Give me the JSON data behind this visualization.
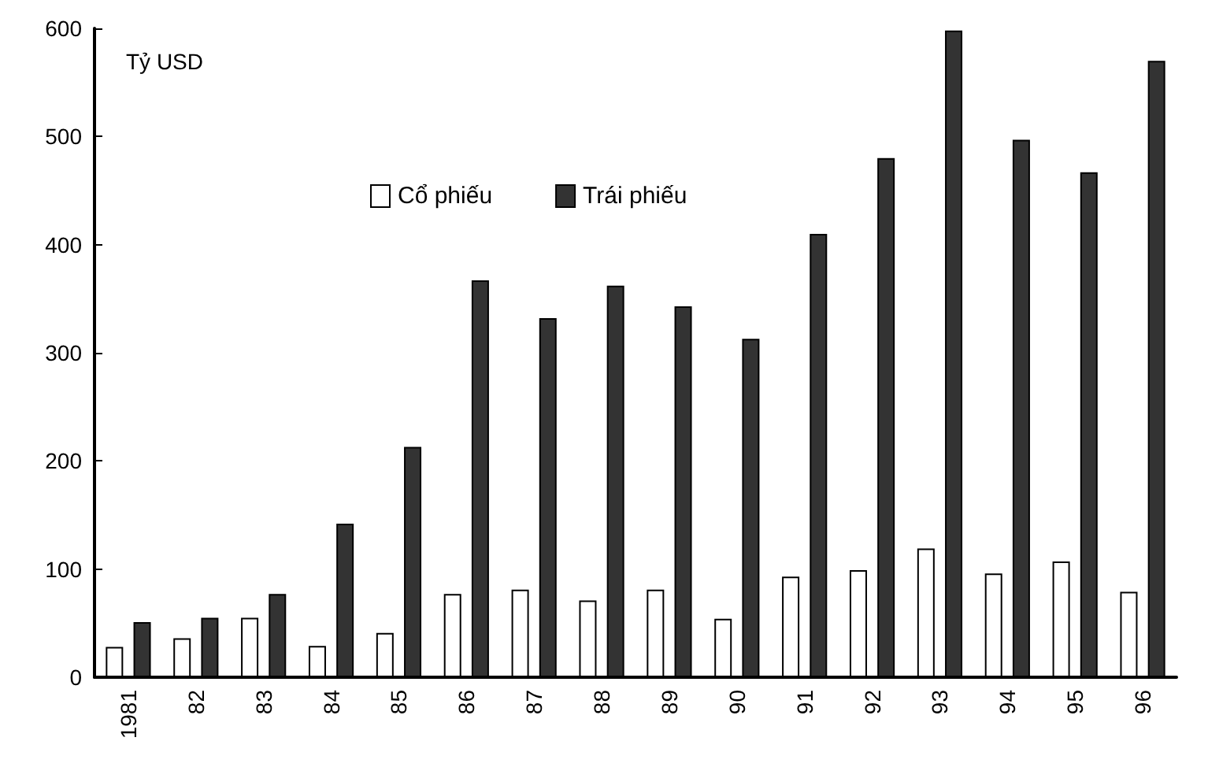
{
  "chart_data": {
    "type": "bar",
    "ylabel": "Tỷ USD",
    "categories": [
      "1981",
      "82",
      "83",
      "84",
      "85",
      "86",
      "87",
      "88",
      "89",
      "90",
      "91",
      "92",
      "93",
      "94",
      "95",
      "96"
    ],
    "series": [
      {
        "name": "Cổ phiếu",
        "color": "#ffffff",
        "values": [
          28,
          36,
          55,
          29,
          41,
          77,
          81,
          71,
          81,
          54,
          93,
          99,
          119,
          96,
          107,
          79
        ]
      },
      {
        "name": "Trái phiếu",
        "color": "#333333",
        "values": [
          51,
          55,
          77,
          142,
          213,
          367,
          332,
          362,
          343,
          313,
          410,
          480,
          598,
          497,
          467,
          570
        ]
      }
    ],
    "ylim": [
      0,
      600
    ],
    "yticks": [
      0,
      100,
      200,
      300,
      400,
      500,
      600
    ],
    "grid": false,
    "legend": "top"
  }
}
